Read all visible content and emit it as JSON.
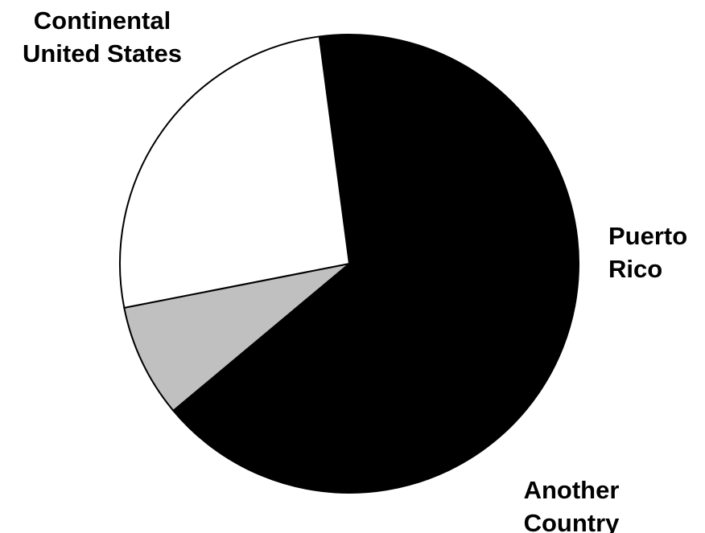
{
  "chart_data": {
    "type": "pie",
    "slices": [
      {
        "name": "Continental United States",
        "label_lines": [
          "Continental",
          "United States"
        ],
        "value": 66,
        "value_label": "66%",
        "color": "#000000",
        "label_color": "#ffffff"
      },
      {
        "name": "Puerto Rico",
        "label_lines": [
          "Puerto",
          "Rico"
        ],
        "value": 8,
        "value_label": "8%",
        "color": "#c0c0c0",
        "label_color": "#000000"
      },
      {
        "name": "Another Country",
        "label_lines": [
          "Another",
          "Country"
        ],
        "value": 26,
        "value_label": "26%",
        "color": "#ffffff",
        "label_color": "#000000"
      }
    ],
    "outline_color": "#000000"
  }
}
